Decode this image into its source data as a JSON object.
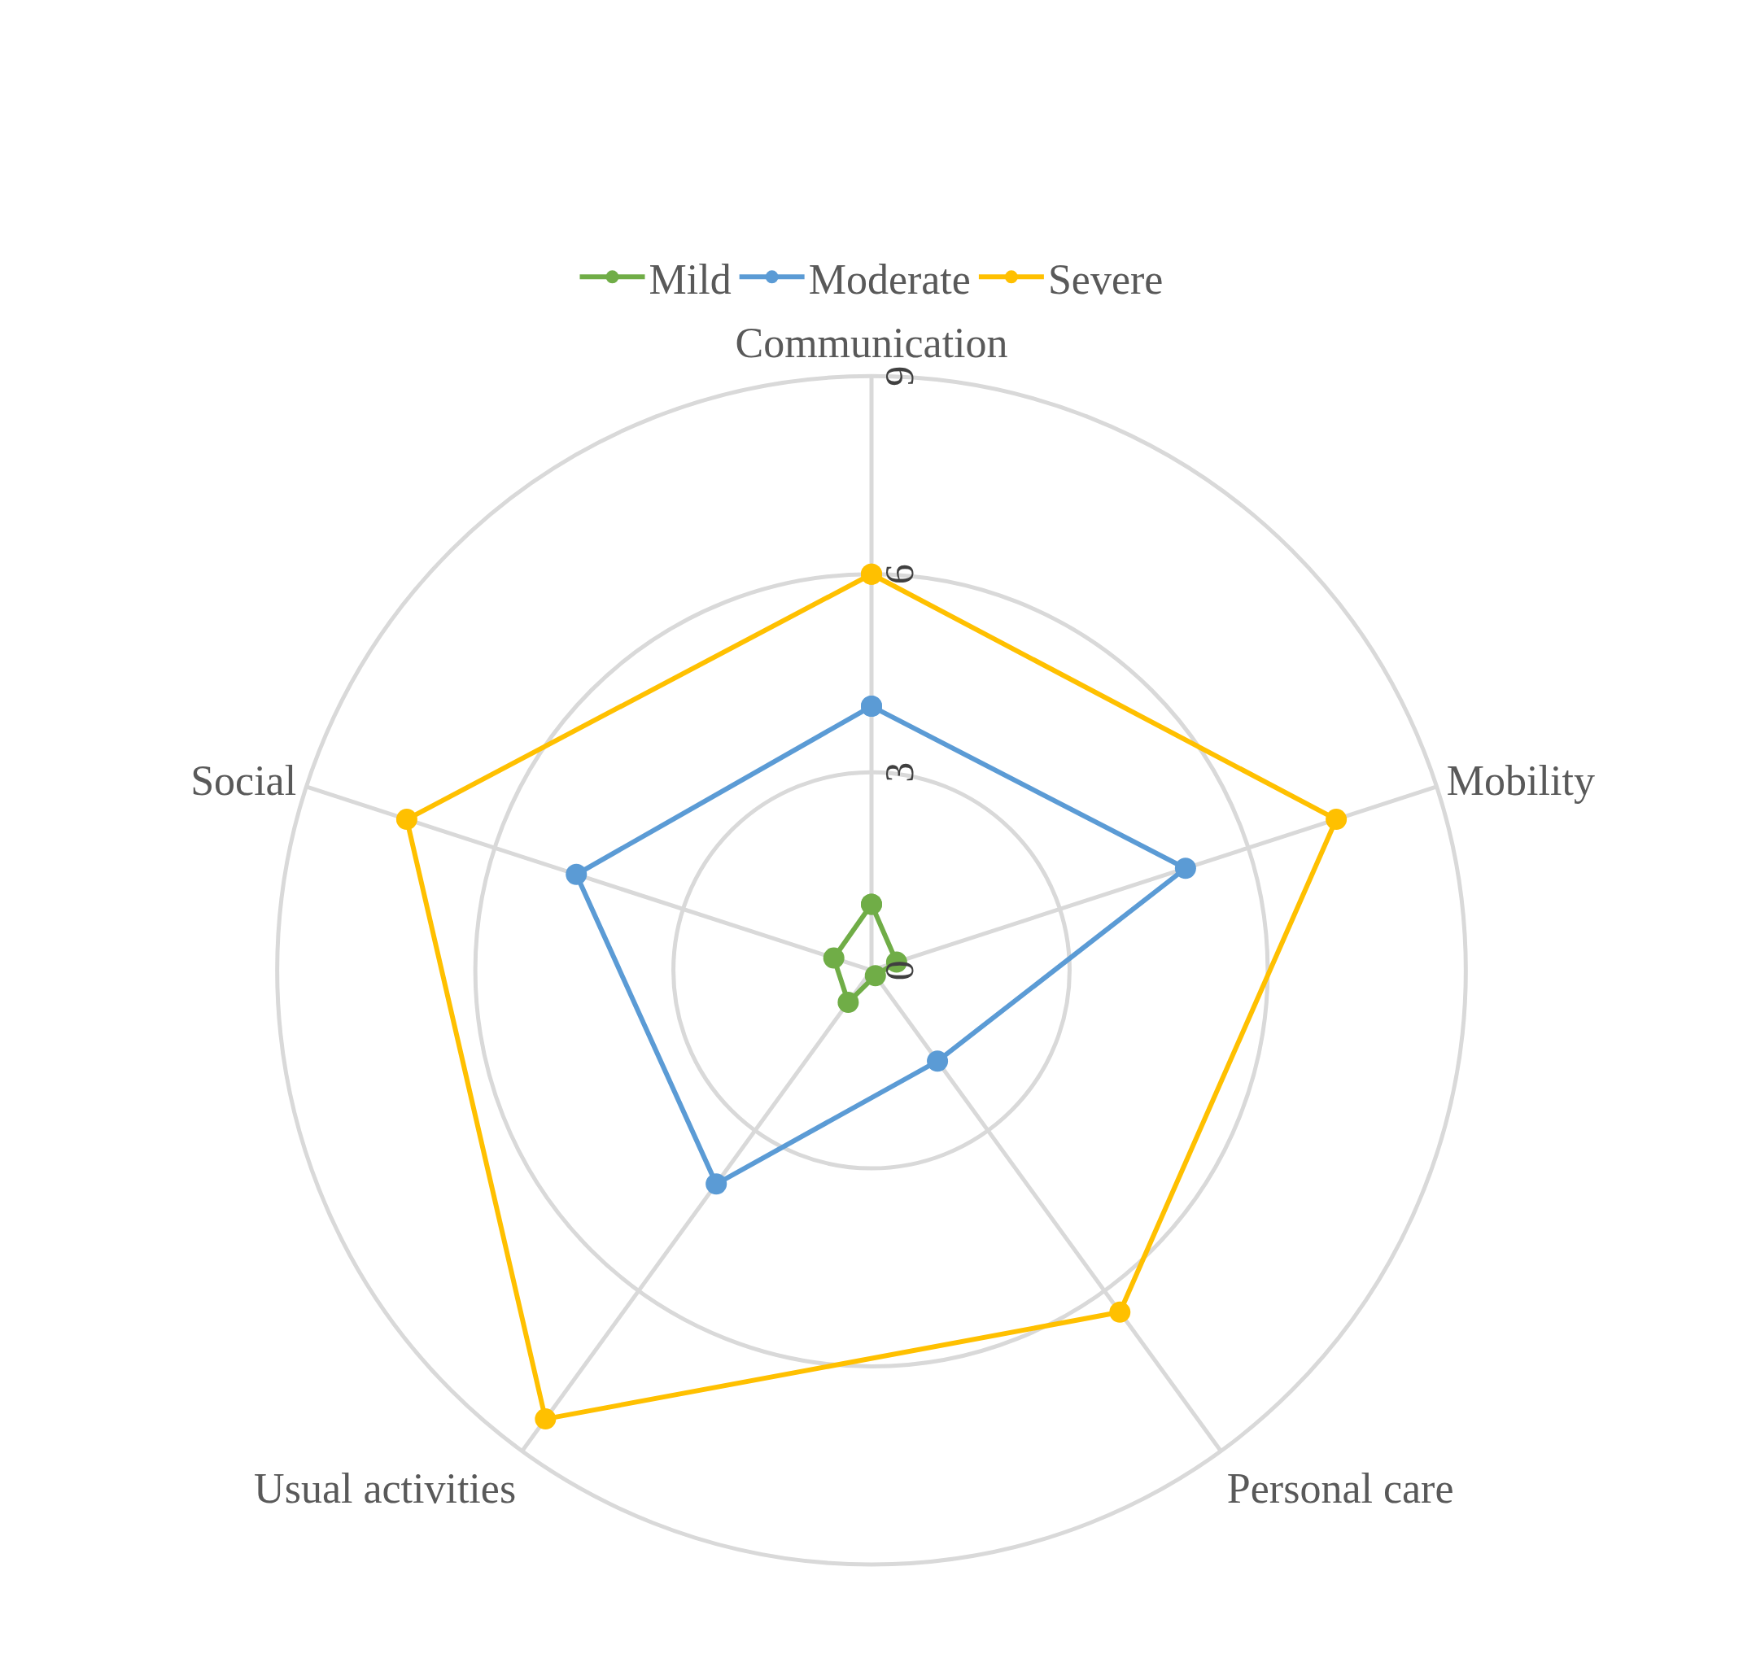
{
  "chart_data": {
    "type": "radar",
    "categories": [
      "Communication",
      "Mobility",
      "Personal care",
      "Usual activities",
      "Social"
    ],
    "series": [
      {
        "name": "Mild",
        "color": "#70ad47",
        "values": [
          1.0,
          0.4,
          0.1,
          0.6,
          0.6
        ]
      },
      {
        "name": "Moderate",
        "color": "#5b9bd5",
        "values": [
          4.0,
          5.0,
          1.7,
          4.0,
          4.7
        ]
      },
      {
        "name": "Severe",
        "color": "#ffc000",
        "values": [
          6.0,
          7.4,
          6.4,
          8.4,
          7.4
        ]
      }
    ],
    "ylim": [
      0,
      9
    ],
    "yticks": [
      0,
      3,
      6,
      9
    ],
    "grid": true,
    "legend": "top",
    "marker": "circle",
    "line_style": "solid"
  }
}
